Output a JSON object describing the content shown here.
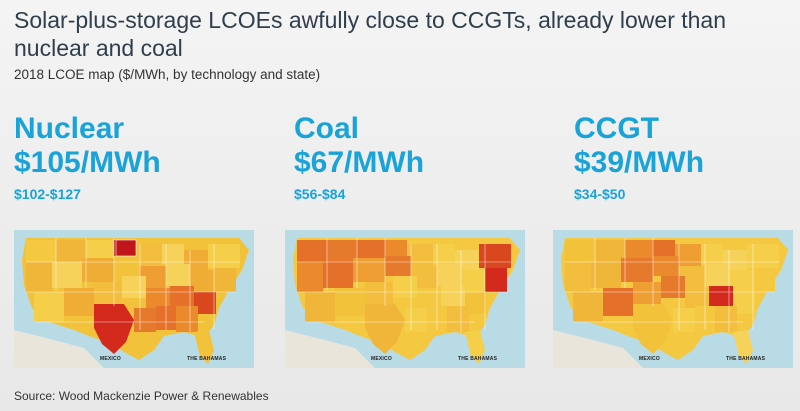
{
  "title": "Solar-plus-storage LCOEs awfully close to CCGTs, already lower than nuclear and coal",
  "subtitle": "2018 LCOE map ($/MWh, by technology and state)",
  "accent_color": "#1aa3d9",
  "panels": [
    {
      "tech": "Nuclear",
      "price": "$105/MWh",
      "range": "$102-$127",
      "map": {
        "label_mexico": "MEXICO",
        "label_bahamas": "THE BAHAMAS"
      }
    },
    {
      "tech": "Coal",
      "price": "$67/MWh",
      "range": "$56-$84",
      "map": {
        "label_mexico": "MEXICO",
        "label_bahamas": "THE BAHAMAS"
      }
    },
    {
      "tech": "CCGT",
      "price": "$39/MWh",
      "range": "$34-$50",
      "map": {
        "label_mexico": "MEXICO",
        "label_bahamas": "THE BAHAMAS"
      }
    }
  ],
  "source": "Source: Wood Mackenzie Power & Renewables"
}
